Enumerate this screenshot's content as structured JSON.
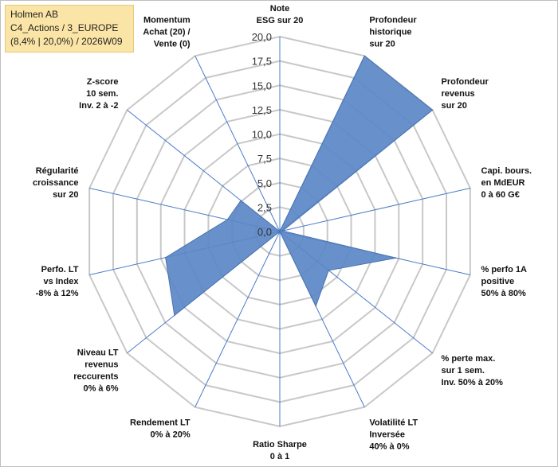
{
  "title_box": {
    "line1": "Holmen AB",
    "line2": "C4_Actions / 3_EUROPE",
    "line3": "(8,4% | 20,0%) / 2026W09"
  },
  "colors": {
    "fill": "#5b87c5",
    "stroke": "#4a73b0",
    "grid": "#c8c8c8",
    "spoke": "#4a7cc9",
    "title_bg": "#fbe5a6"
  },
  "chart_data": {
    "type": "radar",
    "title": "Holmen AB",
    "ylim": [
      0,
      20
    ],
    "tick_step": 2.5,
    "tick_labels": [
      "0,0",
      "2,5",
      "5,0",
      "7,5",
      "10,0",
      "12,5",
      "15,0",
      "17,5",
      "20,0"
    ],
    "axes": [
      {
        "label": [
          "Note",
          "ESG sur 20"
        ],
        "value": 0.0
      },
      {
        "label": [
          "Profondeur",
          "historique",
          "sur 20"
        ],
        "value": 20.0
      },
      {
        "label": [
          "Profondeur",
          "revenus",
          "sur 20"
        ],
        "value": 20.0
      },
      {
        "label": [
          "Capi. bours.",
          "en MdEUR",
          "0 à 60 G€"
        ],
        "value": 0.3
      },
      {
        "label": [
          "% perfo 1A",
          "positive",
          "50% à 80%"
        ],
        "value": 12.2
      },
      {
        "label": [
          "% perte max.",
          "sur 1 sem.",
          "Inv. 50% à 20%"
        ],
        "value": 6.4
      },
      {
        "label": [
          "Volatilité LT",
          "Inversée",
          "40% à 0%"
        ],
        "value": 8.5
      },
      {
        "label": [
          "Ratio Sharpe",
          "0 à 1"
        ],
        "value": 0.0
      },
      {
        "label": [
          "Rendement LT",
          "0% à 20%"
        ],
        "value": 0.0
      },
      {
        "label": [
          "Niveau LT",
          "revenus",
          "reccurents",
          "0% à 6%"
        ],
        "value": 13.8
      },
      {
        "label": [
          "Perfo. LT",
          "vs Index",
          "-8% à 12%"
        ],
        "value": 12.0
      },
      {
        "label": [
          "Régularité",
          "croissance",
          "sur 20"
        ],
        "value": 5.5
      },
      {
        "label": [
          "Z-score",
          "10 sem.",
          "Inv. 2 à -2"
        ],
        "value": 5.1
      },
      {
        "label": [
          "Momentum",
          "Achat (20) /",
          "Vente (0)"
        ],
        "value": 0.0
      }
    ]
  }
}
